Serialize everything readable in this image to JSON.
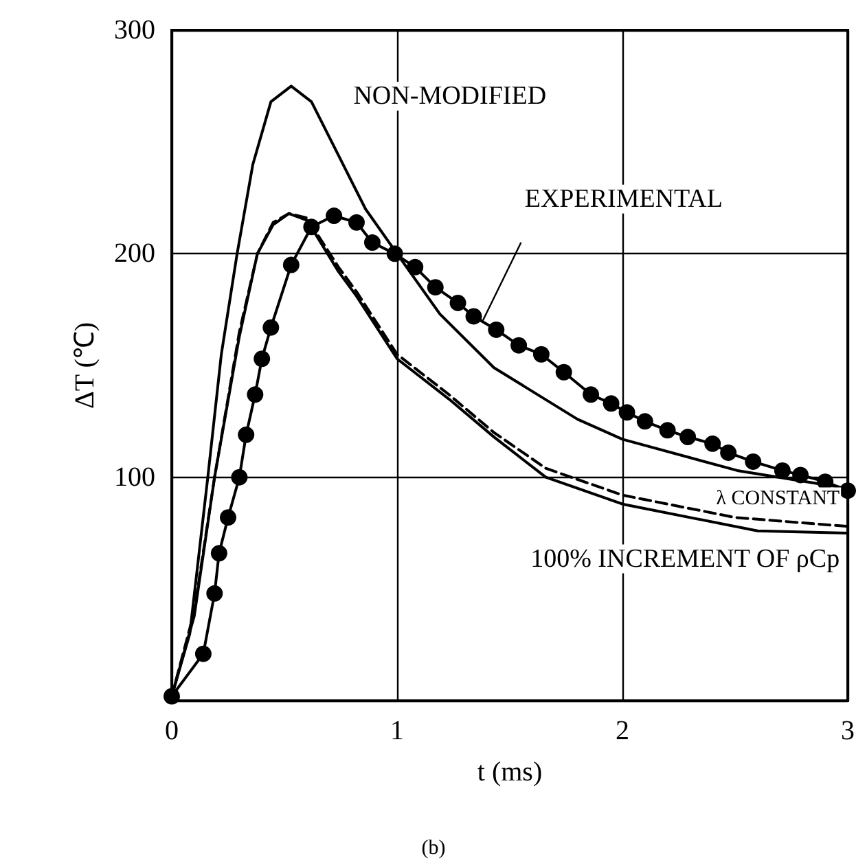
{
  "chart_data": {
    "type": "line",
    "xlabel": "t (ms)",
    "ylabel": "ΔT (℃)",
    "xlim": [
      0,
      3
    ],
    "xticks": [
      0,
      1,
      2,
      3
    ],
    "ylim": [
      0,
      300
    ],
    "yticks": [
      {
        "value": 0,
        "label": null
      },
      100,
      200,
      300
    ],
    "grid": true,
    "legend": false,
    "annotations": [
      "(b)"
    ],
    "series": [
      {
        "name": "NON-MODIFIED",
        "color": "#000000",
        "marker": "none",
        "line_style": "solid",
        "x": [
          0,
          0.08,
          0.16,
          0.22,
          0.29,
          0.36,
          0.44,
          0.53,
          0.62,
          0.74,
          0.86,
          1.0,
          1.19,
          1.43,
          1.8,
          2.0,
          2.51,
          3.0
        ],
        "values": [
          2,
          30,
          100,
          155,
          200,
          240,
          268,
          275,
          268,
          244,
          220,
          200,
          173,
          149,
          126,
          117,
          103,
          95
        ]
      },
      {
        "name": "EXPERIMENTAL",
        "color": "#000000",
        "marker": "circle",
        "line_style": "solid",
        "x": [
          0,
          0.14,
          0.19,
          0.21,
          0.25,
          0.3,
          0.33,
          0.37,
          0.4,
          0.44,
          0.53,
          0.62,
          0.72,
          0.82,
          0.89,
          0.99,
          1.08,
          1.17,
          1.27,
          1.34,
          1.44,
          1.54,
          1.64,
          1.74,
          1.86,
          1.95,
          2.02,
          2.1,
          2.2,
          2.29,
          2.4,
          2.47,
          2.58,
          2.71,
          2.79,
          2.9,
          3.0
        ],
        "values": [
          2,
          21,
          48,
          66,
          82,
          100,
          119,
          137,
          153,
          167,
          195,
          212,
          217,
          214,
          205,
          200,
          194,
          185,
          178,
          172,
          166,
          159,
          155,
          147,
          137,
          133,
          129,
          125,
          121,
          118,
          115,
          111,
          107,
          103,
          101,
          98,
          94
        ]
      },
      {
        "name": "λ CONSTANT",
        "color": "#000000",
        "marker": "none",
        "line_style": "dashed",
        "x": [
          0,
          0.1,
          0.19,
          0.3,
          0.38,
          0.45,
          0.52,
          0.6,
          0.74,
          0.82,
          1.0,
          1.23,
          1.43,
          1.66,
          2.0,
          2.5,
          3.0
        ],
        "values": [
          2,
          40,
          100,
          165,
          200,
          214,
          218,
          216,
          194,
          183,
          155,
          137,
          120,
          104,
          92,
          82,
          78
        ]
      },
      {
        "name": "100% INCREMENT OF ρCp",
        "color": "#000000",
        "marker": "none",
        "line_style": "solid",
        "x": [
          0,
          0.1,
          0.19,
          0.3,
          0.38,
          0.45,
          0.52,
          0.6,
          0.74,
          0.82,
          1.0,
          1.23,
          1.43,
          1.66,
          2.0,
          2.6,
          3.0
        ],
        "values": [
          2,
          38,
          100,
          163,
          200,
          213,
          218,
          215,
          192,
          181,
          153,
          135,
          118,
          100,
          88,
          76,
          75
        ]
      }
    ]
  }
}
